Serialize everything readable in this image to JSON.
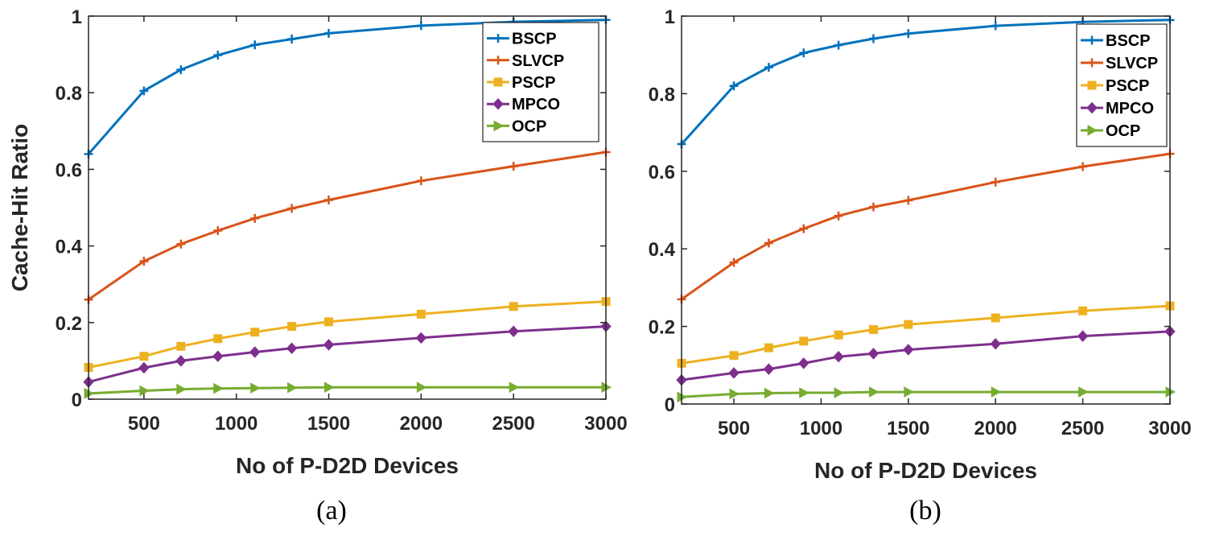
{
  "chart_data": [
    {
      "type": "line",
      "caption": "(a)",
      "xlabel": "No of P-D2D Devices",
      "ylabel": "Cache-Hit Ratio",
      "xlim": [
        200,
        3000
      ],
      "ylim": [
        0,
        1
      ],
      "xticks": [
        500,
        1000,
        1500,
        2000,
        2500,
        3000
      ],
      "yticks": [
        0,
        0.2,
        0.4,
        0.6,
        0.8,
        1
      ],
      "ytick_labels": [
        "0",
        "0.2",
        "0.4",
        "0.6",
        "0.8",
        "1"
      ],
      "x": [
        200,
        500,
        700,
        900,
        1100,
        1300,
        1500,
        2000,
        2500,
        3000
      ],
      "legend_location": "top-right",
      "series": [
        {
          "name": "BSCP",
          "color": "#0072BD",
          "marker": "plus",
          "values": [
            0.64,
            0.805,
            0.86,
            0.898,
            0.925,
            0.94,
            0.955,
            0.975,
            0.985,
            0.99
          ]
        },
        {
          "name": "SLVCP",
          "color": "#D95319",
          "marker": "plus",
          "values": [
            0.26,
            0.36,
            0.405,
            0.44,
            0.472,
            0.498,
            0.52,
            0.57,
            0.608,
            0.645
          ]
        },
        {
          "name": "PSCP",
          "color": "#EDB120",
          "marker": "square",
          "values": [
            0.083,
            0.112,
            0.138,
            0.158,
            0.175,
            0.19,
            0.202,
            0.222,
            0.242,
            0.255
          ]
        },
        {
          "name": "MPCO",
          "color": "#7E2F8E",
          "marker": "diamond",
          "values": [
            0.045,
            0.082,
            0.1,
            0.112,
            0.123,
            0.133,
            0.142,
            0.16,
            0.177,
            0.19
          ]
        },
        {
          "name": "OCP",
          "color": "#77AC30",
          "marker": "triangle-right",
          "values": [
            0.015,
            0.022,
            0.026,
            0.028,
            0.029,
            0.03,
            0.031,
            0.031,
            0.031,
            0.031
          ]
        }
      ]
    },
    {
      "type": "line",
      "caption": "(b)",
      "xlabel": "No of P-D2D Devices",
      "ylabel": "",
      "xlim": [
        200,
        3000
      ],
      "ylim": [
        0,
        1
      ],
      "xticks": [
        500,
        1000,
        1500,
        2000,
        2500,
        3000
      ],
      "yticks": [
        0,
        0.2,
        0.4,
        0.6,
        0.8,
        1
      ],
      "ytick_labels": [
        "0",
        "0.2",
        "0.4",
        "0.6",
        "0.8",
        "1"
      ],
      "x": [
        200,
        500,
        700,
        900,
        1100,
        1300,
        1500,
        2000,
        2500,
        3000
      ],
      "legend_location": "top-right",
      "series": [
        {
          "name": "BSCP",
          "color": "#0072BD",
          "marker": "plus",
          "values": [
            0.67,
            0.82,
            0.868,
            0.905,
            0.925,
            0.942,
            0.955,
            0.975,
            0.985,
            0.99
          ]
        },
        {
          "name": "SLVCP",
          "color": "#D95319",
          "marker": "plus",
          "values": [
            0.27,
            0.365,
            0.415,
            0.452,
            0.485,
            0.508,
            0.525,
            0.572,
            0.612,
            0.645
          ]
        },
        {
          "name": "PSCP",
          "color": "#EDB120",
          "marker": "square",
          "values": [
            0.105,
            0.125,
            0.145,
            0.162,
            0.178,
            0.192,
            0.205,
            0.222,
            0.24,
            0.253
          ]
        },
        {
          "name": "MPCO",
          "color": "#7E2F8E",
          "marker": "diamond",
          "values": [
            0.062,
            0.08,
            0.09,
            0.105,
            0.122,
            0.13,
            0.14,
            0.155,
            0.175,
            0.187
          ]
        },
        {
          "name": "OCP",
          "color": "#77AC30",
          "marker": "triangle-right",
          "values": [
            0.018,
            0.026,
            0.028,
            0.029,
            0.029,
            0.031,
            0.031,
            0.031,
            0.031,
            0.031
          ]
        }
      ]
    }
  ]
}
